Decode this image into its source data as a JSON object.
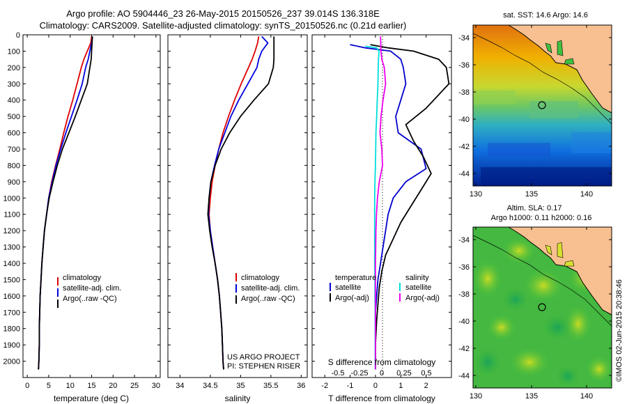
{
  "header": {
    "title_line1": "Argo profile: AO 5904446_23 26-May-2015 20150526_237 39.014S 136.318E",
    "title_line2": "Climatology: CARS2009. Satellite-adjusted climatology: synTS_20150526.nc (0.21d earlier)"
  },
  "chart_data": [
    {
      "type": "line",
      "panel": "temperature",
      "xlabel": "temperature (deg C)",
      "ylabel": "",
      "xlim": [
        -1,
        31
      ],
      "ylim": [
        2100,
        0
      ],
      "y_reversed": true,
      "xticks": [
        0,
        5,
        10,
        15,
        20,
        25,
        30
      ],
      "yticks": [
        0,
        100,
        200,
        300,
        400,
        500,
        600,
        700,
        800,
        900,
        1000,
        1100,
        1200,
        1300,
        1400,
        1500,
        1600,
        1700,
        1800,
        1900,
        2000
      ],
      "legend": [
        "climatology",
        "satellite-adj. clim.",
        "Argo(..raw -QC)"
      ],
      "series": [
        {
          "name": "climatology",
          "color": "#dd0000",
          "x": [
            15.0,
            14.8,
            14.0,
            13.2,
            12.6,
            11.6,
            10.6,
            9.5,
            8.5,
            7.6,
            6.6,
            5.7,
            5.0,
            4.5,
            4.0,
            3.7,
            3.4,
            3.2,
            3.0,
            2.9,
            2.8,
            2.8,
            2.7,
            2.6
          ],
          "y": [
            10,
            50,
            100,
            150,
            200,
            300,
            400,
            500,
            600,
            700,
            800,
            900,
            1000,
            1100,
            1200,
            1300,
            1400,
            1500,
            1600,
            1700,
            1800,
            1900,
            2000,
            2050
          ]
        },
        {
          "name": "satellite-adj. clim.",
          "color": "#0000dd",
          "x": [
            15.2,
            15.0,
            14.6,
            14.2,
            13.6,
            12.8,
            11.6,
            10.3,
            9.0,
            7.8,
            6.7,
            5.8,
            5.0,
            4.5,
            4.0,
            3.7,
            3.4,
            3.2,
            3.0,
            2.9,
            2.8,
            2.8,
            2.7,
            2.6
          ],
          "y": [
            10,
            50,
            100,
            150,
            200,
            300,
            400,
            500,
            600,
            700,
            800,
            900,
            1000,
            1100,
            1200,
            1300,
            1400,
            1500,
            1600,
            1700,
            1800,
            1900,
            2000,
            2050
          ]
        },
        {
          "name": "Argo(..raw -QC)",
          "color": "#000000",
          "x": [
            15.2,
            15.1,
            15.0,
            14.9,
            14.6,
            14.0,
            12.6,
            11.2,
            9.7,
            8.2,
            7.0,
            6.0,
            5.1,
            4.5,
            4.0,
            3.7,
            3.4,
            3.2,
            3.0,
            2.9,
            2.8,
            2.8,
            2.7,
            2.6
          ],
          "y": [
            10,
            50,
            100,
            150,
            200,
            300,
            400,
            500,
            600,
            700,
            800,
            900,
            1000,
            1100,
            1200,
            1300,
            1400,
            1500,
            1600,
            1700,
            1800,
            1900,
            2000,
            2050
          ]
        }
      ]
    },
    {
      "type": "line",
      "panel": "salinity",
      "xlabel": "salinity",
      "ylabel": "",
      "xlim": [
        33.8,
        36.1
      ],
      "ylim": [
        2100,
        0
      ],
      "y_reversed": true,
      "xticks": [
        34,
        34.5,
        35,
        35.5,
        36
      ],
      "legend": [
        "climatology",
        "satellite-adj. clim.",
        "Argo(..raw -QC)"
      ],
      "annotations": [
        "US ARGO PROJECT",
        "PI: STEPHEN RISER"
      ],
      "series": [
        {
          "name": "climatology",
          "color": "#dd0000",
          "x": [
            35.3,
            35.28,
            35.24,
            35.19,
            35.13,
            35.01,
            34.9,
            34.8,
            34.71,
            34.64,
            34.58,
            34.53,
            34.5,
            34.48,
            34.5,
            34.54,
            34.58,
            34.62,
            34.65,
            34.67,
            34.69,
            34.7,
            34.71,
            34.72
          ],
          "y": [
            10,
            50,
            100,
            150,
            200,
            300,
            400,
            500,
            600,
            700,
            800,
            900,
            1000,
            1100,
            1200,
            1300,
            1400,
            1500,
            1600,
            1700,
            1800,
            1900,
            2000,
            2050
          ]
        },
        {
          "name": "satellite-adj. clim.",
          "color": "#0000dd",
          "x": [
            35.35,
            35.45,
            35.35,
            35.3,
            35.27,
            35.12,
            34.97,
            34.84,
            34.74,
            34.64,
            34.57,
            34.51,
            34.48,
            34.47,
            34.5,
            34.54,
            34.58,
            34.62,
            34.65,
            34.67,
            34.69,
            34.7,
            34.71,
            34.72
          ],
          "y": [
            10,
            50,
            100,
            150,
            200,
            300,
            400,
            500,
            600,
            700,
            800,
            900,
            1000,
            1100,
            1200,
            1300,
            1400,
            1500,
            1600,
            1700,
            1800,
            1900,
            2000,
            2050
          ]
        },
        {
          "name": "Argo(..raw -QC)",
          "color": "#000000",
          "x": [
            35.55,
            35.55,
            35.55,
            35.55,
            35.54,
            35.46,
            35.22,
            35.0,
            34.82,
            34.68,
            34.58,
            34.51,
            34.48,
            34.46,
            34.49,
            34.53,
            34.58,
            34.62,
            34.65,
            34.67,
            34.69,
            34.7,
            34.71,
            34.72
          ],
          "y": [
            10,
            50,
            100,
            150,
            200,
            300,
            400,
            500,
            600,
            700,
            800,
            900,
            1000,
            1100,
            1200,
            1300,
            1400,
            1500,
            1600,
            1700,
            1800,
            1900,
            2000,
            2050
          ]
        }
      ]
    },
    {
      "type": "line",
      "panel": "difference",
      "xlabel": "T difference from climatology",
      "xlabel_top": "S difference from climatology",
      "xlim": [
        -2.5,
        3.0
      ],
      "ylim": [
        2100,
        0
      ],
      "y_reversed": true,
      "xticks": [
        -2,
        -1,
        0,
        1,
        2
      ],
      "xticks_salinity": [
        "-0.5",
        "-0.25",
        "0",
        "0.25",
        "0.5"
      ],
      "legend_temperature": [
        "temperature",
        "satellite",
        "Argo(-adj)"
      ],
      "legend_salinity": [
        "salinity",
        "satellite",
        "Argo(-adj)"
      ],
      "series": [
        {
          "name": "T satellite",
          "color": "#0000cc",
          "x": [
            -1.0,
            -0.4,
            0.6,
            1.0,
            1.1,
            1.2,
            1.0,
            0.8,
            0.9,
            1.8,
            2.0,
            1.2,
            0.7,
            0.5,
            0.4,
            0.3,
            0.2,
            0.1,
            0.05,
            0.0,
            0.0,
            0.0
          ],
          "y": [
            60,
            80,
            100,
            150,
            200,
            300,
            400,
            500,
            600,
            700,
            820,
            900,
            1000,
            1100,
            1200,
            1300,
            1400,
            1500,
            1600,
            1700,
            1900,
            2050
          ]
        },
        {
          "name": "T Argo(-adj)",
          "color": "#000000",
          "x": [
            -0.2,
            0.5,
            1.5,
            2.5,
            2.8,
            2.9,
            2.0,
            1.2,
            1.5,
            1.9,
            2.2,
            1.8,
            1.4,
            1.0,
            0.7,
            0.4,
            0.25,
            0.15,
            0.1,
            0.05,
            0.0,
            0.0
          ],
          "y": [
            60,
            80,
            100,
            150,
            200,
            300,
            450,
            550,
            650,
            750,
            850,
            950,
            1050,
            1150,
            1250,
            1350,
            1450,
            1550,
            1650,
            1750,
            1900,
            2050
          ]
        },
        {
          "name": "S satellite",
          "color": "#00dddd",
          "x": [
            -0.4,
            0.05,
            0.14,
            0.12,
            0.11,
            0.1,
            0.07,
            0.05,
            0.02,
            0.01,
            0.0,
            -0.02,
            -0.03,
            -0.03,
            -0.03,
            -0.03,
            -0.03,
            -0.02,
            -0.02,
            -0.01,
            -0.01,
            -0.01
          ],
          "y": [
            70,
            80,
            100,
            150,
            200,
            300,
            400,
            500,
            600,
            700,
            800,
            900,
            1000,
            1100,
            1200,
            1300,
            1400,
            1500,
            1600,
            1700,
            1900,
            2050
          ]
        },
        {
          "name": "S Argo(-adj)",
          "color": "#ee00ee",
          "x": [
            0.2,
            0.21,
            0.22,
            0.25,
            0.35,
            0.4,
            0.3,
            0.22,
            0.18,
            0.25,
            0.28,
            0.15,
            0.08,
            0.04,
            0.02,
            0.01,
            0.0,
            0.0,
            0.0,
            0.0,
            0.0,
            0.0
          ],
          "y": [
            10,
            50,
            100,
            150,
            200,
            300,
            400,
            500,
            600,
            700,
            800,
            900,
            1000,
            1100,
            1200,
            1300,
            1400,
            1500,
            1600,
            1700,
            1900,
            2050
          ]
        }
      ]
    }
  ],
  "maps": {
    "sst": {
      "title": "sat. SST: 14.6 Argo: 14.6",
      "xticks": [
        "130",
        "135",
        "140"
      ],
      "yticks": [
        "-34",
        "-36",
        "-38",
        "-40",
        "-42",
        "-44"
      ]
    },
    "sla": {
      "title_line1": "Altim. SLA: 0.17",
      "title_line2": "Argo h1000: 0.11 h2000: 0.16",
      "xticks": [
        "130",
        "135",
        "140"
      ],
      "yticks": [
        "-34",
        "-36",
        "-38",
        "-40",
        "-42",
        "-44"
      ]
    },
    "credit": "©IMOS 02-Jun-2015 20:38:46"
  }
}
